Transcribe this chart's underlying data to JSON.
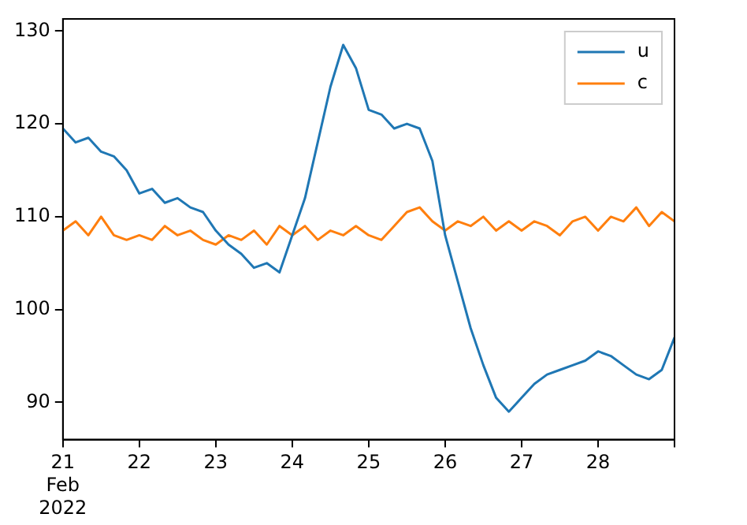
{
  "chart_data": {
    "type": "line",
    "x": [
      "2022-02-21T00:00",
      "2022-02-21T04:00",
      "2022-02-21T08:00",
      "2022-02-21T12:00",
      "2022-02-21T16:00",
      "2022-02-21T20:00",
      "2022-02-22T00:00",
      "2022-02-22T04:00",
      "2022-02-22T08:00",
      "2022-02-22T12:00",
      "2022-02-22T16:00",
      "2022-02-22T20:00",
      "2022-02-23T00:00",
      "2022-02-23T04:00",
      "2022-02-23T08:00",
      "2022-02-23T12:00",
      "2022-02-23T16:00",
      "2022-02-23T20:00",
      "2022-02-24T00:00",
      "2022-02-24T04:00",
      "2022-02-24T08:00",
      "2022-02-24T12:00",
      "2022-02-24T16:00",
      "2022-02-24T20:00",
      "2022-02-25T00:00",
      "2022-02-25T04:00",
      "2022-02-25T08:00",
      "2022-02-25T12:00",
      "2022-02-25T16:00",
      "2022-02-25T20:00",
      "2022-02-26T00:00",
      "2022-02-26T04:00",
      "2022-02-26T08:00",
      "2022-02-26T12:00",
      "2022-02-26T16:00",
      "2022-02-26T20:00",
      "2022-02-27T00:00",
      "2022-02-27T04:00",
      "2022-02-27T08:00",
      "2022-02-27T12:00",
      "2022-02-27T16:00",
      "2022-02-27T20:00",
      "2022-02-28T00:00",
      "2022-02-28T04:00",
      "2022-02-28T08:00",
      "2022-02-28T12:00",
      "2022-02-28T16:00",
      "2022-02-28T20:00",
      "2022-03-01T00:00"
    ],
    "series": [
      {
        "name": "u",
        "color": "#1f77b4",
        "values": [
          119.5,
          118,
          118.5,
          117,
          116.5,
          115,
          112.5,
          113,
          111.5,
          112,
          111,
          110.5,
          108.5,
          107,
          106,
          104.5,
          105,
          104,
          108,
          112,
          118,
          124,
          128.5,
          126,
          121.5,
          121,
          119.5,
          120,
          119.5,
          116,
          108,
          103,
          98,
          94,
          90.5,
          89,
          90.5,
          92,
          93,
          93.5,
          94,
          94.5,
          95.5,
          95,
          94,
          93,
          92.5,
          93.5,
          97
        ]
      },
      {
        "name": "c",
        "color": "#ff7f0e",
        "values": [
          108.5,
          109.5,
          108,
          110,
          108,
          107.5,
          108,
          107.5,
          109,
          108,
          108.5,
          107.5,
          107,
          108,
          107.5,
          108.5,
          107,
          109,
          108,
          109,
          107.5,
          108.5,
          108,
          109,
          108,
          107.5,
          109,
          110.5,
          111,
          109.5,
          108.5,
          109.5,
          109,
          110,
          108.5,
          109.5,
          108.5,
          109.5,
          109,
          108,
          109.5,
          110,
          108.5,
          110,
          109.5,
          111,
          109,
          110.5,
          109.5
        ]
      }
    ],
    "xlim": [
      "2022-02-21",
      "2022-03-01"
    ],
    "xticks": [
      {
        "value": "2022-02-21",
        "label": "21\nFeb\n2022"
      },
      {
        "value": "2022-02-22",
        "label": "22"
      },
      {
        "value": "2022-02-23",
        "label": "23"
      },
      {
        "value": "2022-02-24",
        "label": "24"
      },
      {
        "value": "2022-02-25",
        "label": "25"
      },
      {
        "value": "2022-02-26",
        "label": "26"
      },
      {
        "value": "2022-02-27",
        "label": "27"
      },
      {
        "value": "2022-02-28",
        "label": "28"
      },
      {
        "value": "2022-03-01",
        "label": null
      }
    ],
    "ylim": [
      86,
      131.3
    ],
    "yticks": [
      90,
      100,
      110,
      120,
      130
    ],
    "grid": false,
    "legend": "top right",
    "marker": "none",
    "line_style": "solid"
  }
}
